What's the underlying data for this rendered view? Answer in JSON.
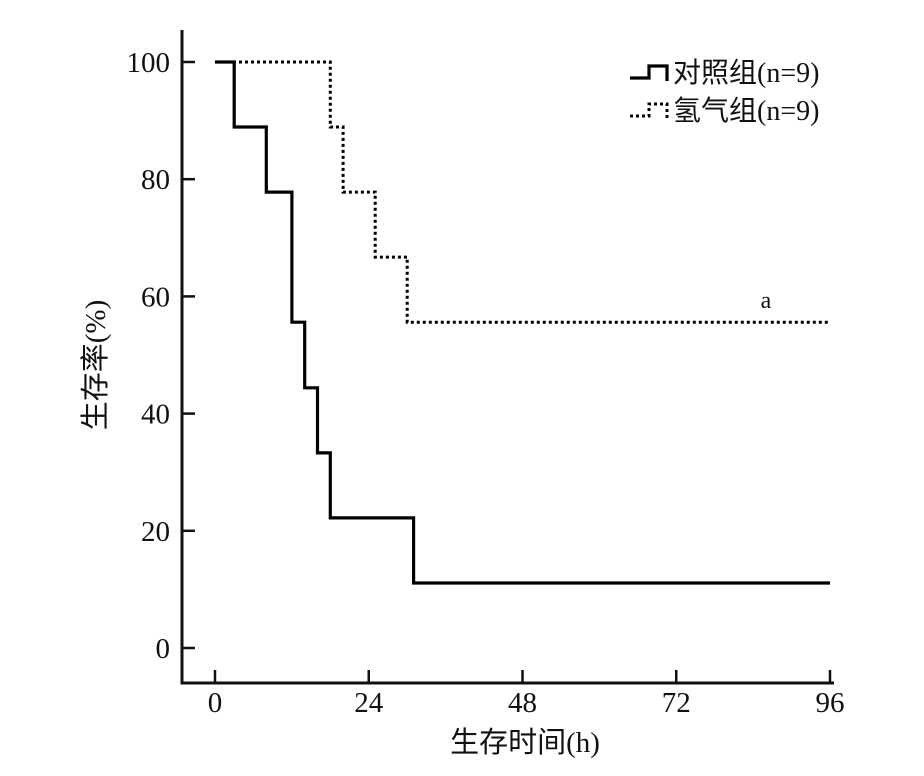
{
  "chart_data": {
    "type": "line",
    "step": true,
    "title": "",
    "xlabel": "生存时间(h)",
    "ylabel": "生存率(%)",
    "xlim": [
      0,
      96
    ],
    "ylim": [
      0,
      100
    ],
    "xticks": [
      0,
      24,
      48,
      72,
      96
    ],
    "yticks": [
      0,
      20,
      40,
      60,
      80,
      100
    ],
    "grid": false,
    "legend_position": "top-right",
    "series": [
      {
        "name": "对照组(n=9)",
        "line_style": "solid",
        "color": "#000000",
        "x": [
          0,
          3,
          8,
          12,
          14,
          16,
          18,
          31,
          96
        ],
        "y": [
          100,
          88.9,
          77.8,
          55.6,
          44.4,
          33.3,
          22.2,
          11.1,
          11.1
        ]
      },
      {
        "name": "氢气组(n=9)",
        "line_style": "dotted",
        "color": "#000000",
        "x": [
          0,
          18,
          20,
          25,
          30,
          96
        ],
        "y": [
          100,
          88.9,
          77.8,
          66.7,
          55.6,
          55.6
        ]
      }
    ],
    "annotations": [
      {
        "text": "a",
        "x": 86,
        "y": 58
      }
    ]
  }
}
